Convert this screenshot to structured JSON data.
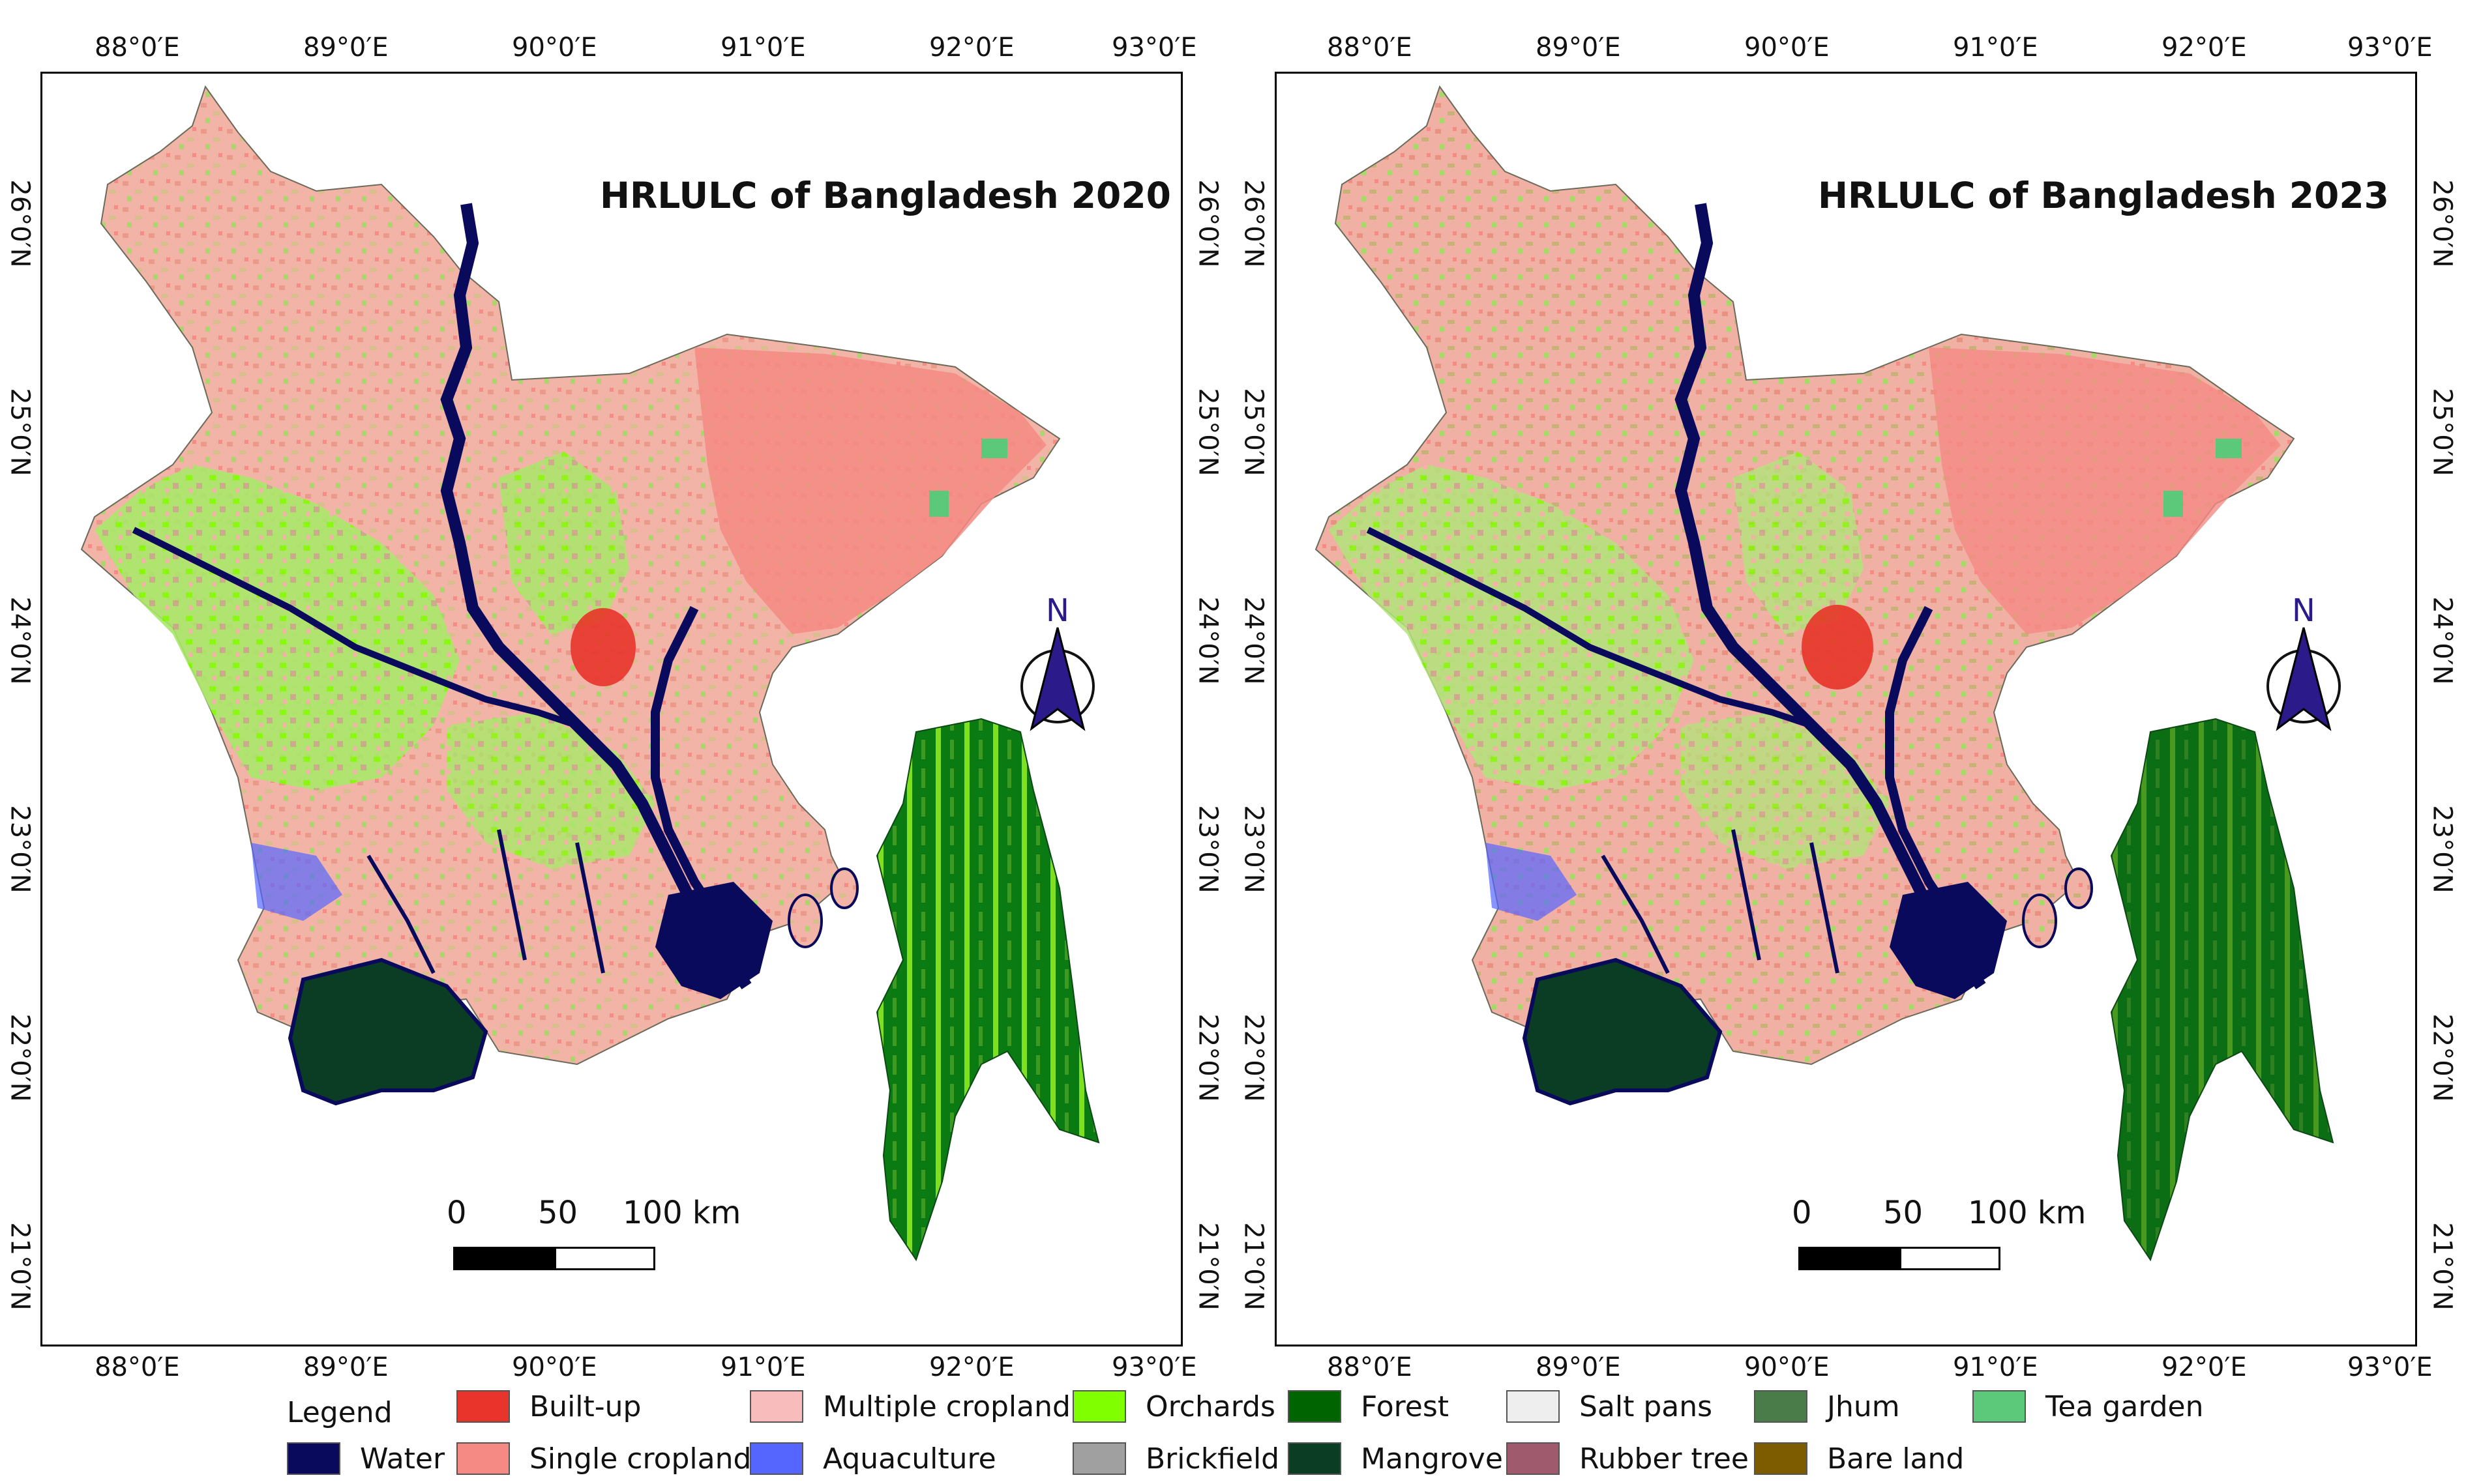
{
  "lon_labels": [
    "88°0′E",
    "89°0′E",
    "90°0′E",
    "91°0′E",
    "92°0′E",
    "93°0′E"
  ],
  "lat_labels": [
    "26°0′N",
    "25°0′N",
    "24°0′N",
    "23°0′N",
    "22°0′N",
    "21°0′N"
  ],
  "maps": [
    {
      "title": "HRLULC of Bangladesh 2020"
    },
    {
      "title": "HRLULC of Bangladesh 2023"
    }
  ],
  "north_arrow": {
    "label": "N",
    "icon": "north-arrow-icon"
  },
  "scale_bar": {
    "ticks": [
      "0",
      "50",
      "100 km"
    ]
  },
  "legend": {
    "title": "Legend",
    "items": [
      {
        "label": "Water",
        "color": "#0a0a5c"
      },
      {
        "label": "Built-up",
        "color": "#e8342a"
      },
      {
        "label": "Single cropland",
        "color": "#f58a84"
      },
      {
        "label": "Multiple cropland",
        "color": "#f9bcbc"
      },
      {
        "label": "Aquaculture",
        "color": "#5566ff"
      },
      {
        "label": "Orchards",
        "color": "#7fff00"
      },
      {
        "label": "Brickfield",
        "color": "#a0a0a0"
      },
      {
        "label": "Forest",
        "color": "#006400"
      },
      {
        "label": "Mangrove",
        "color": "#0b3d24"
      },
      {
        "label": "Salt pans",
        "color": "#eeeeee"
      },
      {
        "label": "Rubber tree",
        "color": "#a05a6e"
      },
      {
        "label": "Jhum",
        "color": "#4a7c4a"
      },
      {
        "label": "Bare land",
        "color": "#7d5c00"
      },
      {
        "label": "Tea garden",
        "color": "#5cc97a"
      }
    ]
  }
}
